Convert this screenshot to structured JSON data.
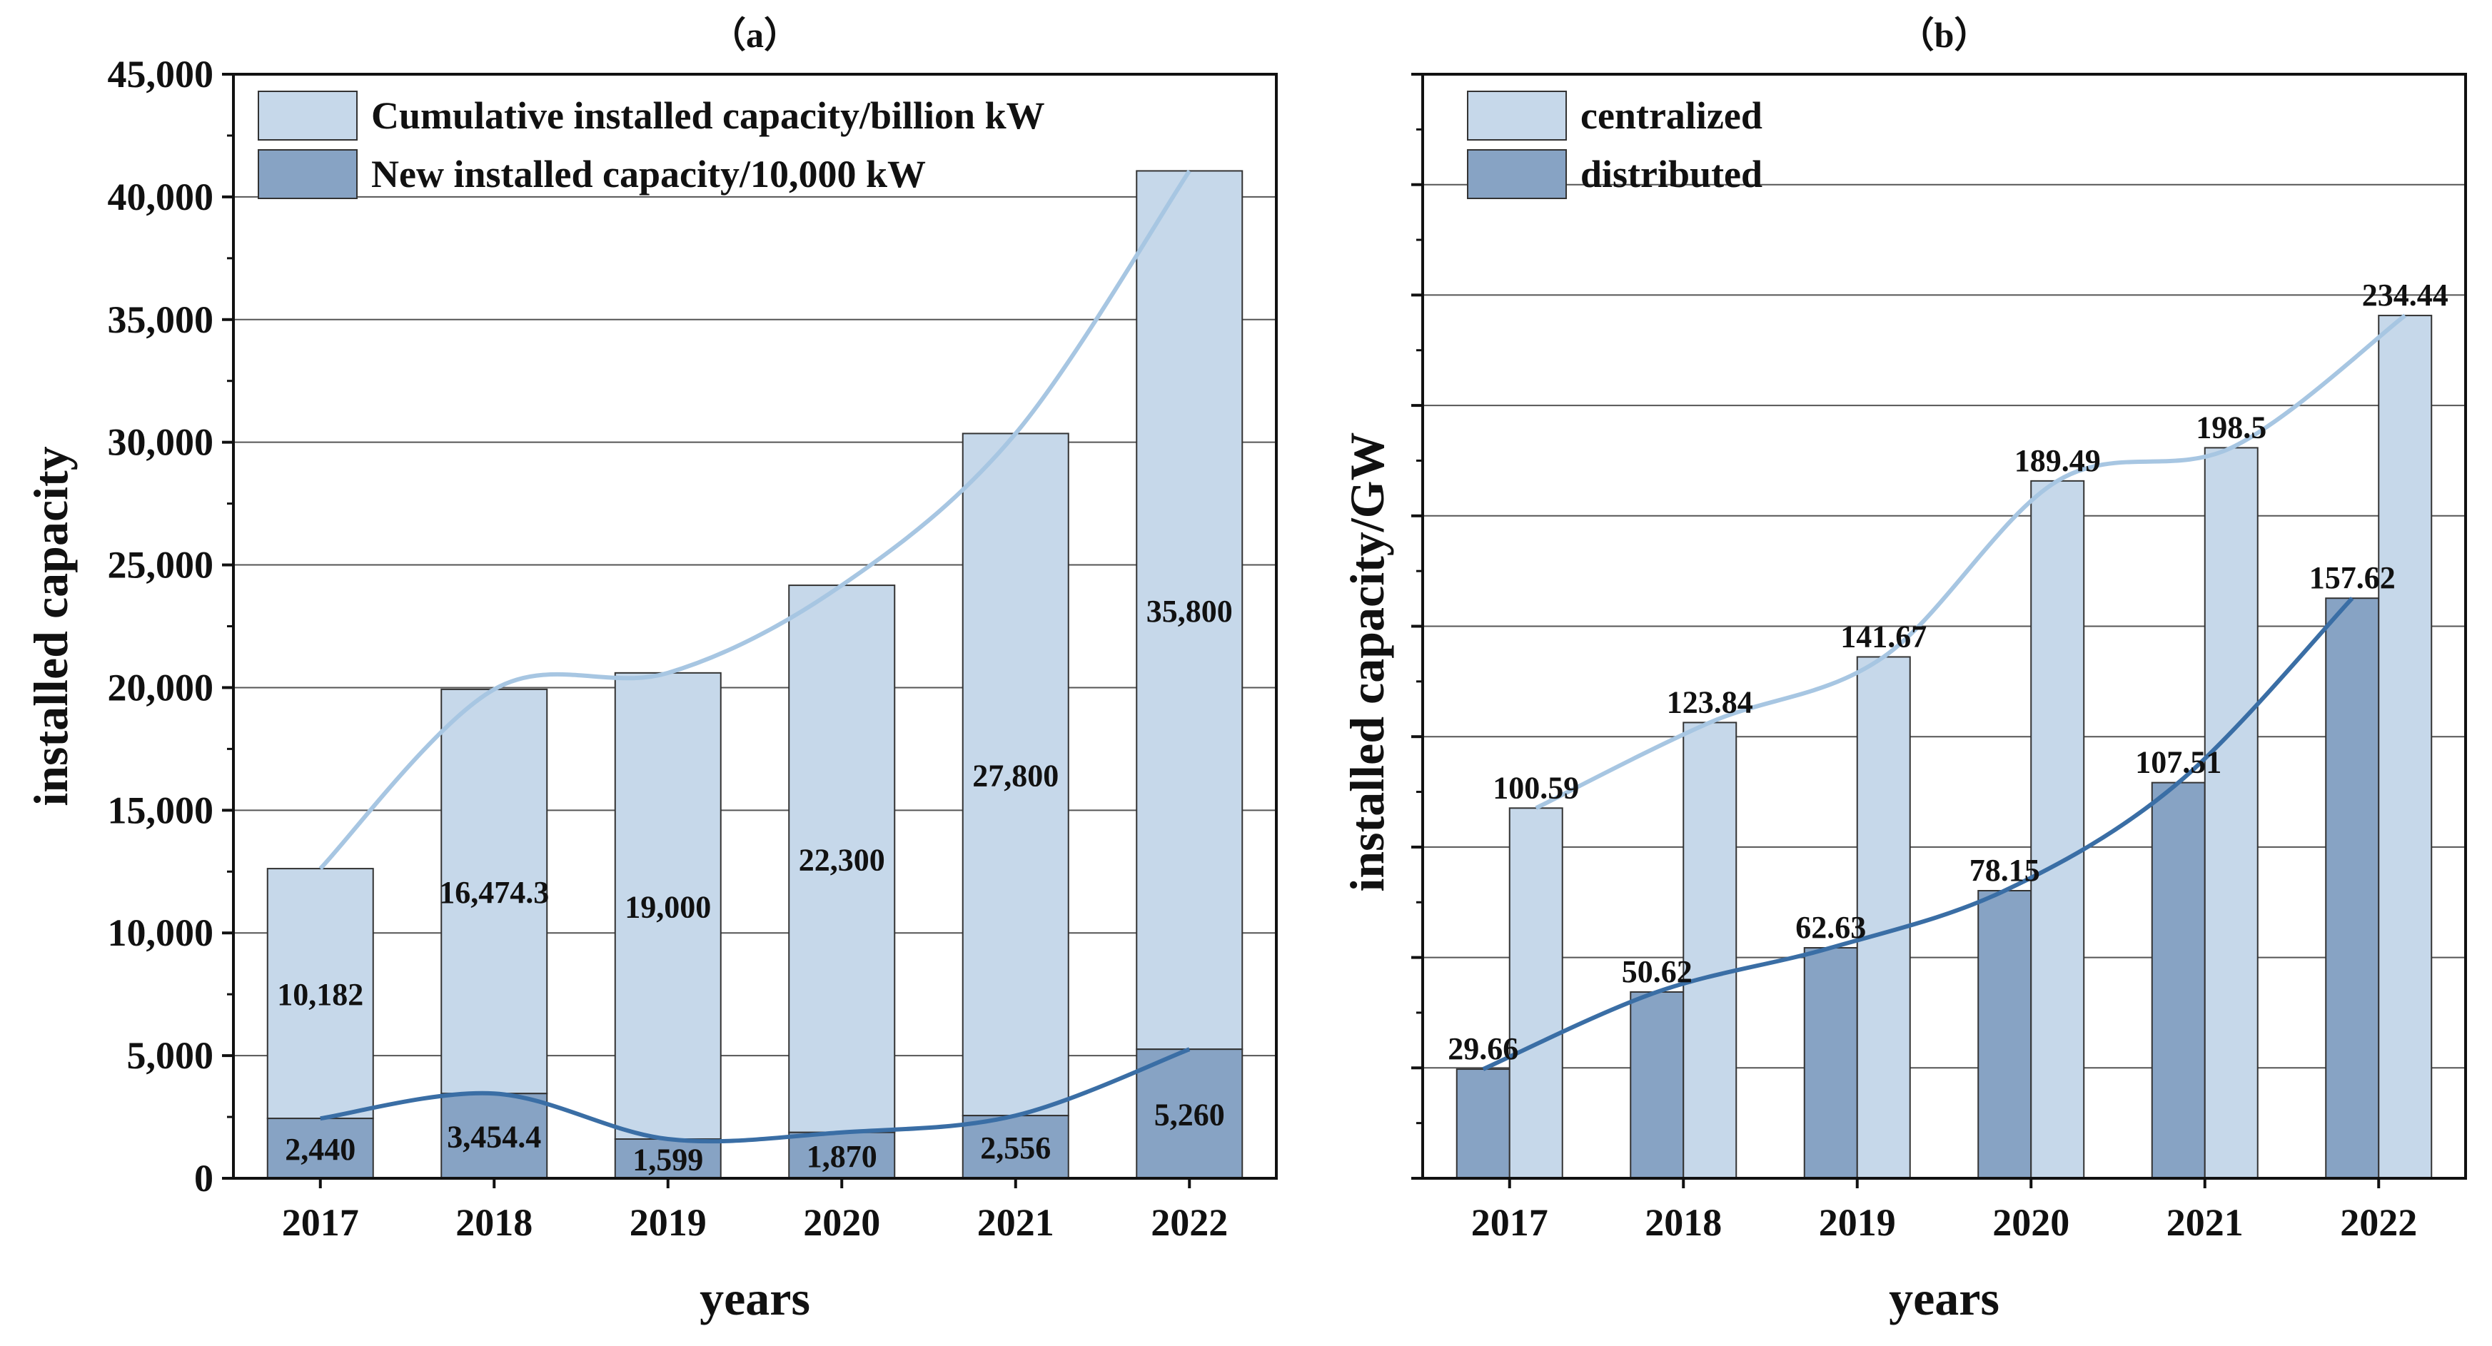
{
  "chart_data": [
    {
      "type": "bar",
      "panel": "(a)",
      "title": "（a）",
      "xlabel": "years",
      "ylabel": "installed capacity",
      "ylim": [
        0,
        45000
      ],
      "yticks": [
        0,
        5000,
        10000,
        15000,
        20000,
        25000,
        30000,
        35000,
        40000,
        45000
      ],
      "ytick_labels": [
        "0",
        "5,000",
        "10,000",
        "15,000",
        "20,000",
        "25,000",
        "30,000",
        "35,000",
        "40,000",
        "45,000"
      ],
      "categories": [
        "2017",
        "2018",
        "2019",
        "2020",
        "2021",
        "2022"
      ],
      "stacked": true,
      "grid": true,
      "legend_position": "top-left",
      "series": [
        {
          "name": "New installed capacity/10,000 kW",
          "values": [
            2440,
            3454.4,
            1599,
            1870,
            2556,
            5260
          ],
          "labels": [
            "2,440",
            "3,454.4",
            "1,599",
            "1,870",
            "2,556",
            "5,260"
          ],
          "color": "#87a3c4",
          "line_color": "#3a6ea5"
        },
        {
          "name": "Cumulative installed capacity/billion kW",
          "values": [
            10182,
            16474.3,
            19000,
            22300,
            27800,
            35800
          ],
          "labels": [
            "10,182",
            "16,474.3",
            "19,000",
            "22,300",
            "27,800",
            "35,800"
          ],
          "color": "#c6d8ea",
          "line_color": "#a7c6e2"
        }
      ]
    },
    {
      "type": "bar",
      "panel": "(b)",
      "title": "（b）",
      "xlabel": "years",
      "ylabel": "installed capacity/GW",
      "ylim": [
        0,
        300
      ],
      "ytick_labels_visible": false,
      "categories": [
        "2017",
        "2018",
        "2019",
        "2020",
        "2021",
        "2022"
      ],
      "grouped": true,
      "grid": true,
      "legend_position": "top-left",
      "series": [
        {
          "name": "distributed",
          "values": [
            29.66,
            50.62,
            62.63,
            78.15,
            107.51,
            157.62
          ],
          "labels": [
            "29.66",
            "50.62",
            "62.63",
            "78.15",
            "107.51",
            "157.62"
          ],
          "color": "#87a3c4",
          "line_color": "#3a6ea5"
        },
        {
          "name": "centralized",
          "values": [
            100.59,
            123.84,
            141.67,
            189.49,
            198.5,
            234.44
          ],
          "labels": [
            "100.59",
            "123.84",
            "141.67",
            "189.49",
            "198.5",
            "234.44"
          ],
          "color": "#c6d8ea",
          "line_color": "#a7c6e2"
        }
      ]
    }
  ]
}
